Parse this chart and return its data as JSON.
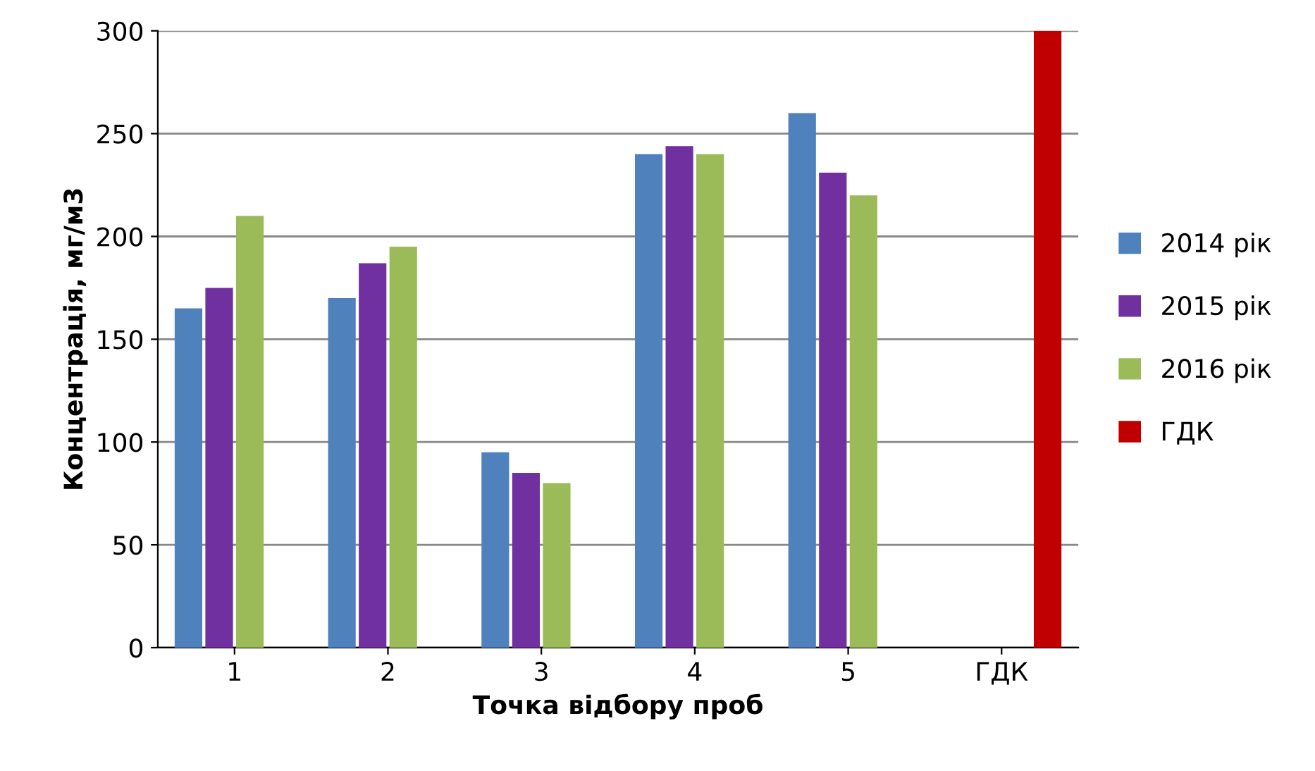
{
  "chart_data": {
    "type": "bar",
    "xlabel": "Точка відбору проб",
    "ylabel": "Концентрація, мг/м3",
    "categories": [
      "1",
      "2",
      "3",
      "4",
      "5",
      "ГДК"
    ],
    "series": [
      {
        "name": "2014 рік",
        "color": "#4f81bd",
        "values": [
          165,
          170,
          95,
          240,
          260,
          null
        ]
      },
      {
        "name": "2015 рік",
        "color": "#7030a0",
        "values": [
          175,
          187,
          85,
          244,
          231,
          null
        ]
      },
      {
        "name": "2016 рік",
        "color": "#9bbb59",
        "values": [
          210,
          195,
          80,
          240,
          220,
          null
        ]
      },
      {
        "name": "ГДК",
        "color": "#c00000",
        "values": [
          null,
          null,
          null,
          null,
          null,
          300
        ]
      }
    ],
    "ylim": [
      0,
      300
    ],
    "yticks": [
      0,
      50,
      100,
      150,
      200,
      250,
      300
    ],
    "grid": "y",
    "legend": "right"
  }
}
